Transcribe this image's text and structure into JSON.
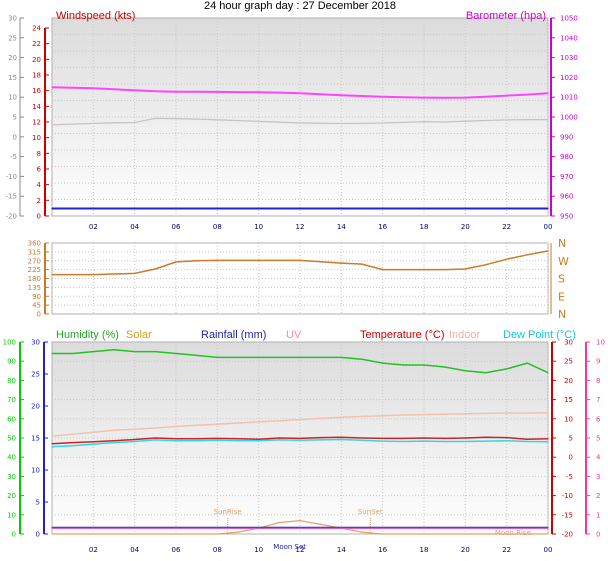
{
  "title": "24 hour graph day : 27 December 2018",
  "colors": {
    "wind": "#d3d3d3",
    "baro": "#ff44ff",
    "dir": "#c97a2d",
    "humidity": "#22c222",
    "temperature": "#cc2222",
    "dewpoint": "#33d6e6",
    "indoor": "#f3c2aa",
    "solar": "#e8a060",
    "rain": "#2222aa",
    "uv": "#cc66cc",
    "axis_green": "#00cc00",
    "axis_pink": "#ff3399",
    "axis_red": "#cc0000",
    "axis_magenta": "#cc00cc",
    "axis_blue": "#2222cc",
    "axis_orange": "#c07d2c"
  },
  "x_axis": {
    "ticks": [
      "02",
      "04",
      "06",
      "08",
      "10",
      "12",
      "14",
      "16",
      "18",
      "20",
      "22",
      "00"
    ]
  },
  "panel1": {
    "left_label": "Windspeed (kts)",
    "right_label": "Barometer (hpa)",
    "outer_left_ticks": [
      "30",
      "25",
      "20",
      "15",
      "10",
      "5",
      "0",
      "-5",
      "-10",
      "-15",
      "-20"
    ],
    "left_ticks": [
      "24",
      "22",
      "20",
      "18",
      "16",
      "14",
      "12",
      "10",
      "8",
      "6",
      "4",
      "2",
      "0"
    ],
    "right_ticks": [
      "1050",
      "1040",
      "1030",
      "1020",
      "1010",
      "1000",
      "990",
      "980",
      "970",
      "960",
      "950"
    ]
  },
  "panel2": {
    "left_ticks": [
      "360",
      "315",
      "270",
      "225",
      "180",
      "135",
      "90",
      "45",
      "0"
    ],
    "dir_labels": [
      "N",
      "W",
      "S",
      "E",
      "N"
    ]
  },
  "panel3": {
    "labels": {
      "humidity": "Humidity (%)",
      "solar": "Solar",
      "rainfall": "Rainfall (mm)",
      "uv": "UV",
      "temperature": "Temperature (°C)",
      "indoor": "Indoor",
      "dewpoint": "Dew Point (°C)"
    },
    "outer_left_ticks": [
      "100",
      "90",
      "80",
      "70",
      "60",
      "50",
      "40",
      "30",
      "20",
      "10",
      "0"
    ],
    "left_ticks": [
      "30",
      "25",
      "20",
      "15",
      "10",
      "5",
      "0"
    ],
    "right_ticks": [
      "30",
      "25",
      "20",
      "15",
      "10",
      "5",
      "0",
      "-5",
      "-10",
      "-15",
      "-20"
    ],
    "outer_right_ticks": [
      "10",
      "9",
      "8",
      "7",
      "6",
      "5",
      "4",
      "3",
      "2",
      "1",
      "0"
    ],
    "annotations": [
      "SunRise",
      "SunSet",
      "Moon Set",
      "Moon Rise"
    ]
  },
  "chart_data": [
    {
      "type": "line",
      "title": "24 hour graph day : 27 December 2018",
      "x": [
        0,
        1,
        2,
        3,
        4,
        5,
        6,
        7,
        8,
        9,
        10,
        11,
        12,
        13,
        14,
        15,
        16,
        17,
        18,
        19,
        20,
        21,
        22,
        23,
        24
      ],
      "series": [
        {
          "name": "Windspeed (kts)",
          "axis": "kts",
          "ylim": [
            0,
            25
          ],
          "values": [
            0,
            0,
            0,
            0,
            0,
            0,
            0,
            0,
            0,
            0,
            0,
            0,
            0,
            0,
            0,
            0,
            0,
            0,
            0,
            0,
            0,
            0,
            0,
            0,
            0
          ]
        },
        {
          "name": "Barometer (hpa)",
          "axis": "hpa",
          "ylim": [
            950,
            1050
          ],
          "values": [
            1015,
            1014.8,
            1014.5,
            1014,
            1013.5,
            1013,
            1012.8,
            1012.8,
            1012.7,
            1012.6,
            1012.5,
            1012.3,
            1012,
            1011.5,
            1011,
            1010.6,
            1010.2,
            1010,
            1009.8,
            1009.7,
            1009.8,
            1010.2,
            1010.8,
            1011.3,
            1012
          ]
        }
      ]
    },
    {
      "type": "line",
      "title": "",
      "ylim": [
        0,
        360
      ],
      "x": [
        0,
        1,
        2,
        3,
        4,
        5,
        6,
        7,
        8,
        9,
        10,
        11,
        12,
        13,
        14,
        15,
        16,
        17,
        18,
        19,
        20,
        21,
        22,
        23,
        24
      ],
      "series": [
        {
          "name": "",
          "values": [
            200,
            200,
            200,
            203,
            206,
            228,
            264,
            270,
            272,
            272,
            272,
            272,
            272,
            265,
            258,
            253,
            225,
            225,
            225,
            225,
            228,
            250,
            278,
            300,
            320
          ]
        }
      ]
    },
    {
      "type": "line",
      "title": "",
      "x": [
        0,
        1,
        2,
        3,
        4,
        5,
        6,
        7,
        8,
        9,
        10,
        11,
        12,
        13,
        14,
        15,
        16,
        17,
        18,
        19,
        20,
        21,
        22,
        23,
        24
      ],
      "series": [
        {
          "name": "Humidity (%)",
          "axis": "%",
          "ylim": [
            0,
            100
          ],
          "values": [
            94,
            94,
            95,
            96,
            95,
            95,
            94,
            93,
            92,
            92,
            92,
            92,
            92,
            92,
            92,
            91,
            89,
            88,
            88,
            87,
            85,
            84,
            86,
            89,
            84
          ]
        },
        {
          "name": "Temperature (°C)",
          "axis": "°C",
          "ylim": [
            -20,
            30
          ],
          "values": [
            3.5,
            3.8,
            4,
            4.3,
            4.6,
            5,
            4.8,
            4.8,
            4.9,
            4.8,
            4.7,
            5,
            4.9,
            5.1,
            5.2,
            5,
            4.9,
            4.9,
            5,
            4.9,
            5,
            5.2,
            5.1,
            4.7,
            4.8
          ]
        },
        {
          "name": "Dew Point (°C)",
          "axis": "°C",
          "ylim": [
            -20,
            30
          ],
          "values": [
            2.7,
            3,
            3.4,
            3.8,
            4.1,
            4.5,
            4.3,
            4.3,
            4.4,
            4.3,
            4.3,
            4.5,
            4.4,
            4.5,
            4.6,
            4.4,
            4.2,
            4.1,
            4.2,
            4.1,
            4.1,
            4.2,
            4.3,
            4.1,
            4
          ]
        },
        {
          "name": "Indoor",
          "axis": "°C",
          "ylim": [
            -20,
            30
          ],
          "values": [
            5.5,
            6,
            6.5,
            7,
            7.3,
            7.6,
            8,
            8.3,
            8.6,
            8.9,
            9.2,
            9.5,
            9.8,
            10.1,
            10.4,
            10.6,
            10.8,
            11,
            11.1,
            11.2,
            11.3,
            11.4,
            11.5,
            11.5,
            11.6
          ]
        },
        {
          "name": "Rainfall (mm)",
          "axis": "mm",
          "ylim": [
            0,
            30
          ],
          "values": [
            0,
            0,
            0,
            0,
            0,
            0,
            0,
            0,
            0,
            0,
            0,
            0,
            0,
            0,
            0,
            0,
            0,
            0,
            0,
            0,
            0,
            0,
            0,
            0,
            0
          ]
        },
        {
          "name": "UV",
          "axis": "uv",
          "ylim": [
            0,
            10
          ],
          "values": [
            0,
            0,
            0,
            0,
            0,
            0,
            0,
            0,
            0,
            0,
            0,
            0,
            0,
            0,
            0,
            0,
            0,
            0,
            0,
            0,
            0,
            0,
            0,
            0,
            0
          ]
        },
        {
          "name": "Solar",
          "axis": "uv",
          "ylim": [
            0,
            10
          ],
          "values": [
            0,
            0,
            0,
            0,
            0,
            0,
            0,
            0,
            0,
            0.1,
            0.3,
            0.6,
            0.7,
            0.5,
            0.3,
            0.1,
            0,
            0,
            0,
            0,
            0,
            0,
            0,
            0,
            0
          ]
        }
      ]
    }
  ]
}
